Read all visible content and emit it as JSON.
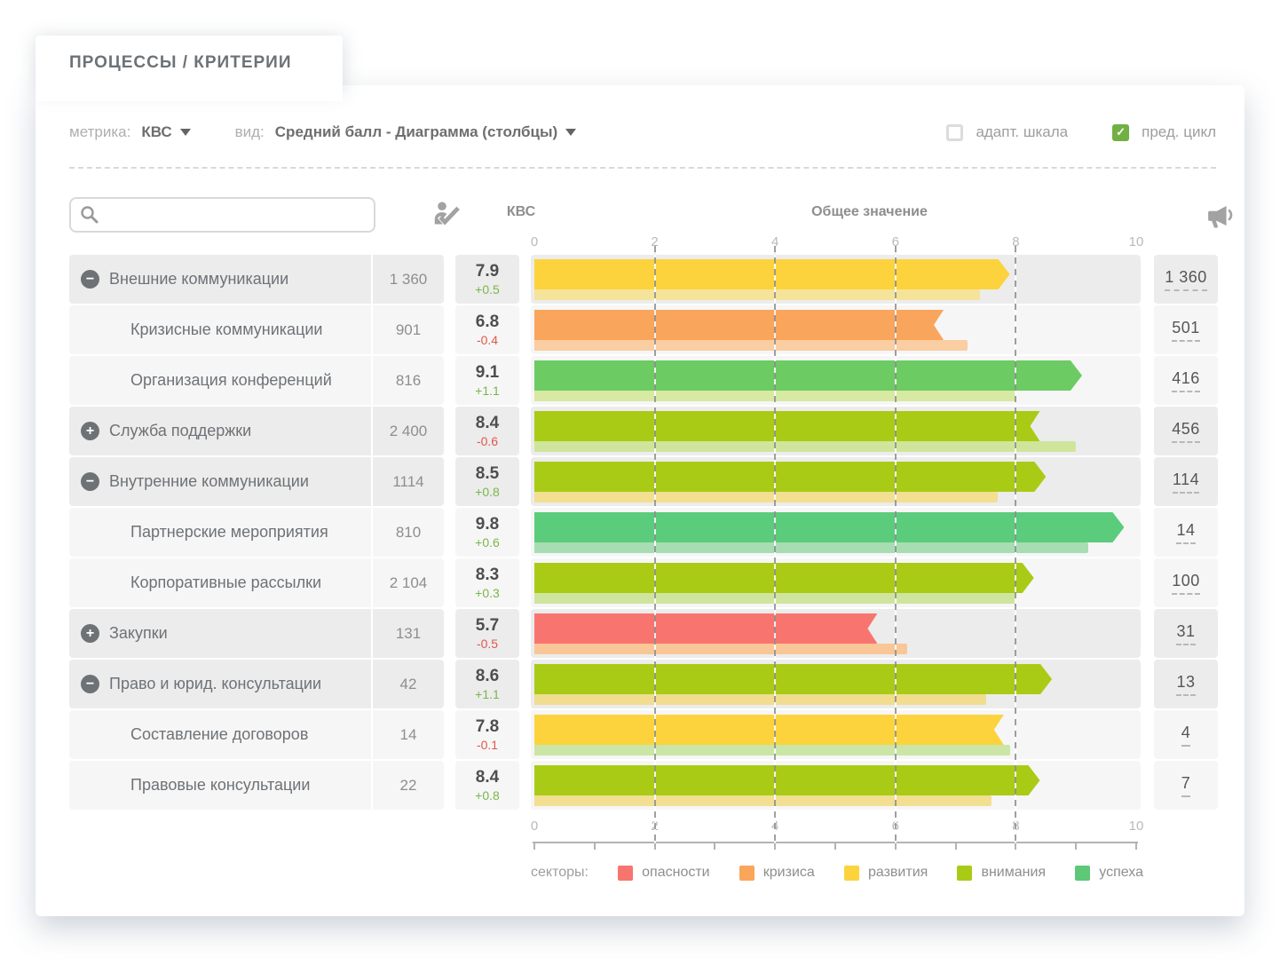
{
  "tab": {
    "title": "ПРОЦЕССЫ / КРИТЕРИИ"
  },
  "toolbar": {
    "metric_label": "метрика:",
    "metric_value": "КВС",
    "view_label": "вид:",
    "view_value": "Средний балл - Диаграмма (столбцы)",
    "adaptive_scale": {
      "label": "адапт. шкала",
      "checked": false
    },
    "prev_cycle": {
      "label": "пред. цикл",
      "checked": true,
      "checked_color": "#72b043"
    }
  },
  "table": {
    "search": {
      "placeholder": "",
      "value": ""
    },
    "headers": {
      "kvs": "КВС",
      "value": "Общее значение"
    },
    "axis": {
      "min": 0,
      "max": 10,
      "tick_labels": [
        0,
        2,
        4,
        6,
        8,
        10
      ],
      "minor_tick_step": 1
    },
    "delta_colors": {
      "up": "#7ab648",
      "down": "#e2574c"
    },
    "rows": [
      {
        "name": "Внешние коммуникации",
        "level": 0,
        "expander": "minus",
        "count": "1 360",
        "kvs": "7.9",
        "delta": "+0.5",
        "trend": "up",
        "value": 7.9,
        "prev_value": 7.4,
        "bar_color": "#fcd33d",
        "prev_color": "#f5e39a",
        "link_count": "1 360"
      },
      {
        "name": "Кризисные коммуникации",
        "level": 1,
        "expander": "none",
        "count": "901",
        "kvs": "6.8",
        "delta": "-0.4",
        "trend": "down",
        "value": 6.8,
        "prev_value": 7.2,
        "bar_color": "#f9a55c",
        "prev_color": "#facda2",
        "link_count": "501"
      },
      {
        "name": "Организация конференций",
        "level": 1,
        "expander": "none",
        "count": "816",
        "kvs": "9.1",
        "delta": "+1.1",
        "trend": "up",
        "value": 9.1,
        "prev_value": 8.0,
        "bar_color": "#6ccb63",
        "prev_color": "#d7e9a2",
        "link_count": "416"
      },
      {
        "name": "Служба поддержки",
        "level": 0,
        "expander": "plus",
        "count": "2 400",
        "kvs": "8.4",
        "delta": "-0.6",
        "trend": "down",
        "value": 8.4,
        "prev_value": 9.0,
        "bar_color": "#a9cb16",
        "prev_color": "#d0e59c",
        "link_count": "456"
      },
      {
        "name": "Внутренние коммуникации",
        "level": 0,
        "expander": "minus",
        "count": "1114",
        "kvs": "8.5",
        "delta": "+0.8",
        "trend": "up",
        "value": 8.5,
        "prev_value": 7.7,
        "bar_color": "#a9cb16",
        "prev_color": "#f2df92",
        "link_count": "114"
      },
      {
        "name": "Партнерские мероприятия",
        "level": 1,
        "expander": "none",
        "count": "810",
        "kvs": "9.8",
        "delta": "+0.6",
        "trend": "up",
        "value": 9.8,
        "prev_value": 9.2,
        "bar_color": "#5bcc7c",
        "prev_color": "#a8ddb3",
        "link_count": "14"
      },
      {
        "name": "Корпоративные рассылки",
        "level": 1,
        "expander": "none",
        "count": "2 104",
        "kvs": "8.3",
        "delta": "+0.3",
        "trend": "up",
        "value": 8.3,
        "prev_value": 8.0,
        "bar_color": "#a9cb16",
        "prev_color": "#cfe59d",
        "link_count": "100"
      },
      {
        "name": "Закупки",
        "level": 0,
        "expander": "plus",
        "count": "131",
        "kvs": "5.7",
        "delta": "-0.5",
        "trend": "down",
        "value": 5.7,
        "prev_value": 6.2,
        "bar_color": "#f8756f",
        "prev_color": "#f9c697",
        "link_count": "31"
      },
      {
        "name": "Право и юрид. консультации",
        "level": 0,
        "expander": "minus",
        "count": "42",
        "kvs": "8.6",
        "delta": "+1.1",
        "trend": "up",
        "value": 8.6,
        "prev_value": 7.5,
        "bar_color": "#a9cb16",
        "prev_color": "#f1dd90",
        "link_count": "13"
      },
      {
        "name": "Составление договоров",
        "level": 1,
        "expander": "none",
        "count": "14",
        "kvs": "7.8",
        "delta": "-0.1",
        "trend": "down",
        "value": 7.8,
        "prev_value": 7.9,
        "bar_color": "#fcd33d",
        "prev_color": "#cae5a6",
        "link_count": "4"
      },
      {
        "name": "Правовые консультации",
        "level": 1,
        "expander": "none",
        "count": "22",
        "kvs": "8.4",
        "delta": "+0.8",
        "trend": "up",
        "value": 8.4,
        "prev_value": 7.6,
        "bar_color": "#a9cb16",
        "prev_color": "#f2df92",
        "link_count": "7"
      }
    ]
  },
  "legend": {
    "label": "секторы:",
    "items": [
      {
        "label": "опасности",
        "color": "#f8746f"
      },
      {
        "label": "кризиса",
        "color": "#f9a55c"
      },
      {
        "label": "развития",
        "color": "#fcd33d"
      },
      {
        "label": "внимания",
        "color": "#a9cb16"
      },
      {
        "label": "успеха",
        "color": "#5dc878"
      }
    ]
  }
}
